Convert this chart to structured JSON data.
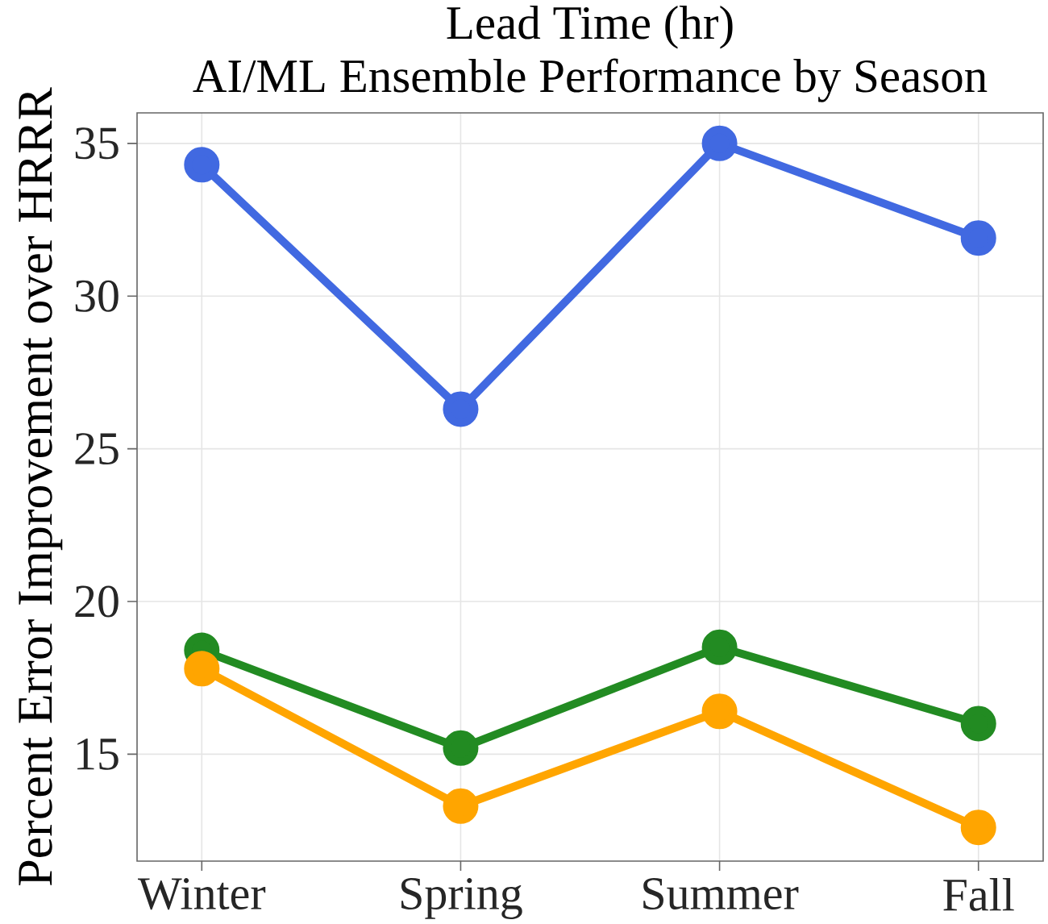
{
  "chart_data": {
    "type": "line",
    "title": "AI/ML Ensemble Performance by Season",
    "ylabel": "Percent Error Improvement over HRRR",
    "annotations": [
      "Lead Time (hr)"
    ],
    "categories": [
      "Winter",
      "Spring",
      "Summer",
      "Fall"
    ],
    "series": [
      {
        "color": "#4169e1",
        "values": [
          34.3,
          26.3,
          35.0,
          31.9
        ]
      },
      {
        "color": "#228b22",
        "values": [
          18.4,
          15.2,
          18.5,
          16.0
        ]
      },
      {
        "color": "#ffa500",
        "values": [
          17.8,
          13.3,
          16.4,
          12.6
        ]
      }
    ],
    "ylim": [
      11.5,
      36
    ],
    "yticks": [
      15,
      20,
      25,
      30,
      35
    ],
    "grid": true,
    "marker": "circle",
    "line_style": "solid"
  }
}
